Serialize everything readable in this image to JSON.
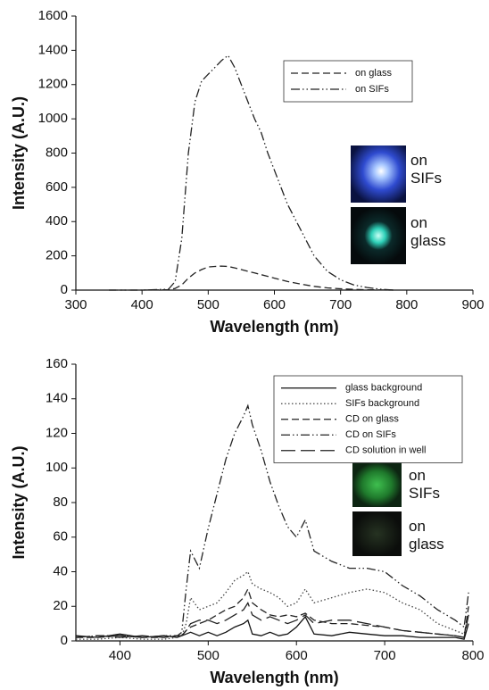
{
  "chart_data": [
    {
      "type": "line",
      "x_label": "Wavelength (nm)",
      "y_label": "Intensity (A.U.)",
      "x": [
        350,
        400,
        440,
        450,
        460,
        470,
        480,
        490,
        500,
        510,
        520,
        530,
        540,
        550,
        560,
        570,
        580,
        590,
        600,
        620,
        640,
        660,
        680,
        700,
        720,
        740,
        760,
        780
      ],
      "series": [
        {
          "name": "on glass",
          "color": "#222222",
          "style": "dashed",
          "values": [
            0,
            0,
            2,
            10,
            30,
            70,
            100,
            120,
            135,
            138,
            140,
            138,
            130,
            120,
            110,
            100,
            90,
            80,
            70,
            50,
            35,
            22,
            13,
            8,
            4,
            2,
            1,
            0
          ]
        },
        {
          "name": "on SIFs",
          "color": "#222222",
          "style": "dash-dot-dot",
          "values": [
            0,
            0,
            5,
            50,
            300,
            800,
            1100,
            1220,
            1260,
            1300,
            1340,
            1370,
            1300,
            1200,
            1100,
            1000,
            920,
            800,
            700,
            500,
            350,
            200,
            110,
            60,
            30,
            15,
            5,
            0
          ]
        }
      ],
      "xlim": [
        300,
        900
      ],
      "xticks": [
        300,
        400,
        500,
        600,
        700,
        800,
        900
      ],
      "ylim": [
        0,
        1600
      ],
      "yticks": [
        0,
        200,
        400,
        600,
        800,
        1000,
        1200,
        1400,
        1600
      ],
      "legend": "upper right",
      "annotations": [
        "on SIFs",
        "on glass"
      ]
    },
    {
      "type": "line",
      "x_label": "Wavelength (nm)",
      "y_label": "Intensity (A.U.)",
      "x": [
        350,
        375,
        400,
        425,
        450,
        465,
        470,
        475,
        480,
        490,
        500,
        510,
        520,
        530,
        540,
        545,
        550,
        560,
        570,
        580,
        590,
        600,
        610,
        620,
        640,
        660,
        680,
        700,
        720,
        740,
        760,
        780,
        790,
        795
      ],
      "series": [
        {
          "name": "glass background",
          "color": "#111111",
          "style": "solid",
          "values": [
            3,
            2,
            4,
            2,
            3,
            2,
            3,
            4,
            5,
            3,
            5,
            3,
            5,
            8,
            10,
            12,
            4,
            3,
            5,
            3,
            4,
            8,
            14,
            4,
            3,
            5,
            4,
            3,
            3,
            2,
            2,
            2,
            1,
            10
          ]
        },
        {
          "name": "SIFs background",
          "color": "#444444",
          "style": "dotted",
          "values": [
            1,
            1,
            2,
            1,
            1,
            2,
            3,
            10,
            25,
            18,
            20,
            22,
            28,
            35,
            38,
            40,
            33,
            30,
            28,
            25,
            20,
            22,
            30,
            22,
            25,
            28,
            30,
            28,
            22,
            18,
            10,
            6,
            4,
            15
          ]
        },
        {
          "name": "CD on glass",
          "color": "#222222",
          "style": "dashed",
          "values": [
            2,
            2,
            3,
            2,
            2,
            3,
            3,
            6,
            8,
            10,
            12,
            15,
            18,
            20,
            25,
            30,
            22,
            18,
            15,
            14,
            15,
            14,
            16,
            12,
            10,
            10,
            9,
            8,
            6,
            5,
            4,
            3,
            2,
            20
          ]
        },
        {
          "name": "CD on SIFs",
          "color": "#222222",
          "style": "dash-dot-dot",
          "values": [
            2,
            3,
            3,
            2,
            3,
            3,
            5,
            30,
            52,
            42,
            65,
            85,
            105,
            120,
            130,
            136,
            125,
            110,
            92,
            78,
            66,
            60,
            70,
            52,
            46,
            42,
            42,
            40,
            32,
            26,
            18,
            12,
            8,
            28
          ]
        },
        {
          "name": "CD solution in well",
          "color": "#222222",
          "style": "long-dash",
          "values": [
            2,
            3,
            2,
            3,
            2,
            3,
            3,
            6,
            10,
            12,
            12,
            10,
            12,
            15,
            18,
            22,
            15,
            12,
            14,
            12,
            10,
            12,
            15,
            10,
            12,
            12,
            10,
            8,
            6,
            5,
            4,
            3,
            2,
            15
          ]
        }
      ],
      "xlim": [
        350,
        800
      ],
      "xticks": [
        400,
        500,
        600,
        700,
        800
      ],
      "ylim": [
        0,
        160
      ],
      "yticks": [
        0,
        20,
        40,
        60,
        80,
        100,
        120,
        140,
        160
      ],
      "legend": "upper right",
      "annotations": [
        "on SIFs",
        "on glass"
      ]
    }
  ]
}
